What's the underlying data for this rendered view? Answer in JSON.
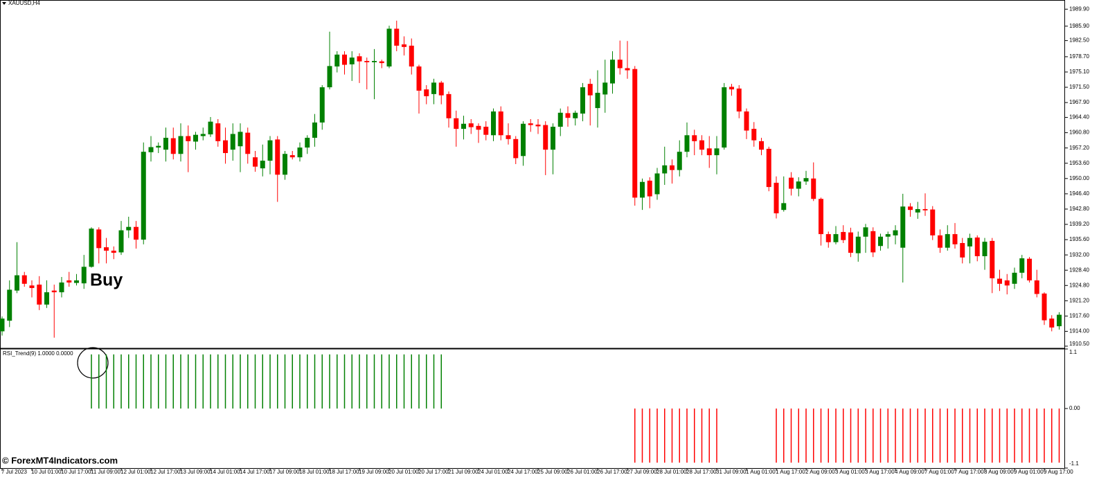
{
  "chart_data": [
    {
      "type": "candlestick",
      "title": "XAUUSD,H4",
      "annotation": "Buy",
      "up_color": "#008000",
      "down_color": "#ff0000",
      "categories": [
        "7 Jul 2023",
        null,
        null,
        null,
        "10 Jul 01:00",
        null,
        null,
        null,
        "10 Jul 17:00",
        null,
        null,
        null,
        "11 Jul 09:00",
        null,
        null,
        null,
        "12 Jul 01:00",
        null,
        null,
        null,
        "12 Jul 17:00",
        null,
        null,
        null,
        "13 Jul 09:00",
        null,
        null,
        null,
        "14 Jul 01:00",
        null,
        null,
        null,
        "14 Jul 17:00",
        null,
        null,
        null,
        "17 Jul 09:00",
        null,
        null,
        null,
        "18 Jul 01:00",
        null,
        null,
        null,
        "18 Jul 17:00",
        null,
        null,
        null,
        "19 Jul 09:00",
        null,
        null,
        null,
        "20 Jul 01:00",
        null,
        null,
        null,
        "20 Jul 17:00",
        null,
        null,
        null,
        "21 Jul 09:00",
        null,
        null,
        null,
        "24 Jul 01:00",
        null,
        null,
        null,
        "24 Jul 17:00",
        null,
        null,
        null,
        "25 Jul 09:00",
        null,
        null,
        null,
        "26 Jul 01:00",
        null,
        null,
        null,
        "26 Jul 17:00",
        null,
        null,
        null,
        "27 Jul 09:00",
        null,
        null,
        null,
        "28 Jul 01:00",
        null,
        null,
        null,
        "28 Jul 17:00",
        null,
        null,
        null,
        "31 Jul 09:00",
        null,
        null,
        null,
        "1 Aug 01:00",
        null,
        null,
        null,
        "1 Aug 17:00",
        null,
        null,
        null,
        "2 Aug 09:00",
        null,
        null,
        null,
        "3 Aug 01:00",
        null,
        null,
        null,
        "3 Aug 17:00",
        null,
        null,
        null,
        "4 Aug 09:00",
        null,
        null,
        null,
        "7 Aug 01:00",
        null,
        null,
        null,
        "7 Aug 17:00",
        null,
        null,
        null,
        "8 Aug 09:00",
        null,
        null,
        null,
        "9 Aug 01:00",
        null,
        null,
        null,
        "9 Aug 17:00",
        null,
        null
      ],
      "open": [
        1914,
        1916.5,
        1923.6,
        1927.2,
        1924.8,
        1925,
        1920.3,
        1923.6,
        1923.2,
        1926,
        1925.4,
        1925.3,
        1929.2,
        1938,
        1933.8,
        1933,
        1932.6,
        1937.8,
        1938.6,
        1935.6,
        1956.2,
        1957.3,
        1956.8,
        1959.5,
        1955.8,
        1960,
        1958.7,
        1960,
        1960.4,
        1963,
        1959,
        1956.8,
        1957.6,
        1960.8,
        1955,
        1952.4,
        1954.2,
        1959.2,
        1950.9,
        1955.5,
        1955,
        1957.3,
        1959.6,
        1963.2,
        1971.5,
        1976.4,
        1979.2,
        1976.9,
        1978.8,
        1977.7,
        1977.4,
        1977.6,
        1976.4,
        1985.3,
        1981.6,
        1981.3,
        1976.4,
        1971,
        1969.9,
        1972.6,
        1969.9,
        1964.2,
        1961.7,
        1963,
        1962.4,
        1962.2,
        1960.2,
        1965.8,
        1960.2,
        1959.3,
        1955.3,
        1963,
        1962.7,
        1962.6,
        1956.8,
        1962.2,
        1965.4,
        1964.2,
        1965.3,
        1972.3,
        1966.6,
        1969.8,
        1972.4,
        1978,
        1976,
        1975.8,
        1945.5,
        1949.5,
        1946.3,
        1951.2,
        1953.1,
        1952,
        1956.3,
        1960.2,
        1959,
        1957.1,
        1955.5,
        1957.3,
        1971.6,
        1971.2,
        1965.8,
        1961.7,
        1958.8,
        1957,
        1949,
        1942.6,
        1950.2,
        1947.6,
        1949.3,
        1950,
        1945.2,
        1936.9,
        1935,
        1937.4,
        1937.3,
        1932.4,
        1936.3,
        1937.6,
        1934.1,
        1936.3,
        1936.6,
        1933.7,
        1943.4,
        1942,
        1942.8,
        1942.7,
        1936.6,
        1933.7,
        1936.9,
        1934.8,
        1934,
        1936.1,
        1931.7,
        1935.3,
        1926.4,
        1926,
        1925.2,
        1927.8,
        1931.1,
        1926,
        1922.9,
        1917,
        1915.2
      ],
      "high": [
        1917.5,
        1926,
        1935,
        1928,
        1926,
        1927,
        1926,
        1925,
        1926.8,
        1928,
        1927.5,
        1932,
        1938.5,
        1938.5,
        1936,
        1934,
        1940,
        1941,
        1940,
        1958.5,
        1960,
        1958.5,
        1962,
        1962,
        1963,
        1962.5,
        1961,
        1962,
        1964.5,
        1964,
        1962,
        1963,
        1963,
        1962,
        1956.5,
        1958,
        1960,
        1960,
        1956.5,
        1956.5,
        1958.5,
        1960.2,
        1965.2,
        1972,
        1984.6,
        1980,
        1980,
        1980,
        1979.5,
        1978.5,
        1980.5,
        1978,
        1986,
        1987.2,
        1983.5,
        1983,
        1976.8,
        1972,
        1973.5,
        1973,
        1970.5,
        1966,
        1964.8,
        1964,
        1963,
        1963.5,
        1966.5,
        1967,
        1963,
        1960,
        1963.5,
        1964,
        1964,
        1963.5,
        1963,
        1966.5,
        1967,
        1966,
        1972.5,
        1973.5,
        1975.5,
        1978,
        1980,
        1982.5,
        1982.4,
        1976.5,
        1950,
        1950.3,
        1952.5,
        1957.5,
        1954.5,
        1959,
        1963.2,
        1961.5,
        1960.2,
        1960,
        1960,
        1972.5,
        1972.3,
        1972,
        1966.5,
        1963.3,
        1959.6,
        1957.5,
        1950.5,
        1950.5,
        1951.5,
        1950.3,
        1951.8,
        1953.8,
        1945.5,
        1937.5,
        1938.8,
        1939,
        1938.4,
        1937.5,
        1939.3,
        1938.5,
        1937,
        1937.5,
        1939,
        1946.4,
        1944.2,
        1944.5,
        1946.5,
        1943.5,
        1938,
        1939,
        1939.5,
        1936,
        1937,
        1936.6,
        1936,
        1936,
        1928.5,
        1927.5,
        1929,
        1932,
        1931.5,
        1928.5,
        1923.2,
        1917.8,
        1918.5
      ],
      "low": [
        1913,
        1915,
        1923,
        1924.5,
        1922,
        1919,
        1919.5,
        1912.5,
        1922,
        1924.5,
        1924.8,
        1924,
        1929,
        1930,
        1930,
        1931,
        1932,
        1936,
        1933.5,
        1934.5,
        1954,
        1956,
        1954,
        1954.5,
        1954,
        1951.5,
        1956.8,
        1959,
        1959.8,
        1957.5,
        1953.5,
        1954.2,
        1951.5,
        1953.5,
        1951.6,
        1950.5,
        1951,
        1944.5,
        1949.7,
        1954.5,
        1954,
        1955.8,
        1957.5,
        1961.5,
        1971,
        1975,
        1974.5,
        1973,
        1972.5,
        1971,
        1968.7,
        1976,
        1976,
        1980,
        1979,
        1974.5,
        1965.3,
        1967.5,
        1967.5,
        1967.5,
        1962,
        1957.5,
        1959.2,
        1960.5,
        1958.4,
        1959,
        1958.8,
        1959,
        1958,
        1953.4,
        1953,
        1961,
        1960.5,
        1950.8,
        1951,
        1960,
        1962.2,
        1962.5,
        1963.5,
        1962.5,
        1962,
        1965.5,
        1970,
        1974.5,
        1973.5,
        1943.6,
        1942.6,
        1943,
        1945,
        1948.5,
        1948.8,
        1950.5,
        1955,
        1955.5,
        1955.5,
        1952.5,
        1951,
        1956.8,
        1969.5,
        1964.2,
        1959.3,
        1957.5,
        1955.5,
        1947,
        1940.6,
        1942.2,
        1946,
        1945.8,
        1948.5,
        1944.7,
        1934.2,
        1933.7,
        1934.5,
        1934.8,
        1931.5,
        1930.4,
        1932.5,
        1931.5,
        1933,
        1933.5,
        1934.5,
        1925.5,
        1941,
        1940.5,
        1941.2,
        1935.5,
        1932.5,
        1933,
        1933.5,
        1930,
        1930,
        1930.5,
        1928.5,
        1923,
        1923.5,
        1922.7,
        1924,
        1926.5,
        1925.5,
        1922,
        1915.5,
        1914,
        1914.4
      ],
      "close": [
        1917,
        1923.8,
        1927.2,
        1925.2,
        1924.2,
        1920.3,
        1923.2,
        1923.2,
        1925.5,
        1925.5,
        1926,
        1929.2,
        1938.2,
        1933.6,
        1933,
        1932.5,
        1937.8,
        1938.6,
        1935.6,
        1956.3,
        1957.4,
        1957.7,
        1959.6,
        1955.8,
        1960,
        1958.8,
        1960.3,
        1960.5,
        1963.4,
        1958.8,
        1956,
        1960.5,
        1961,
        1955.8,
        1952.8,
        1954.2,
        1959,
        1950.9,
        1955.8,
        1955,
        1957.3,
        1959.6,
        1963.2,
        1971.5,
        1976.5,
        1979.2,
        1976.8,
        1978.5,
        1977.6,
        1977.4,
        1977.7,
        1977.2,
        1985.3,
        1981.3,
        1981,
        1976.4,
        1970.7,
        1969.4,
        1972.6,
        1969.6,
        1964.2,
        1961.7,
        1962.9,
        1962.1,
        1961.5,
        1960.3,
        1965.8,
        1960.2,
        1959.3,
        1954.8,
        1962.9,
        1962.6,
        1962.3,
        1956.8,
        1962.2,
        1965.5,
        1964.3,
        1965.5,
        1971.5,
        1969.6,
        1970.2,
        1972.6,
        1978,
        1976,
        1975.5,
        1945.5,
        1949.2,
        1945.8,
        1951.2,
        1953.1,
        1952,
        1956.3,
        1960.2,
        1958.8,
        1956.8,
        1955.5,
        1957.1,
        1971.5,
        1971,
        1965.8,
        1961.3,
        1959,
        1956.8,
        1948,
        1941.8,
        1944.2,
        1947.6,
        1949.3,
        1950.1,
        1945.2,
        1936.9,
        1935,
        1936.9,
        1935.5,
        1932.5,
        1936.3,
        1938.5,
        1932.6,
        1936.3,
        1936.9,
        1937.8,
        1943.4,
        1942.6,
        1942.8,
        1942.5,
        1936.6,
        1933.7,
        1936.9,
        1934.5,
        1931.4,
        1936,
        1931.7,
        1935.1,
        1926.5,
        1925.2,
        1924.8,
        1927.8,
        1931.2,
        1926,
        1922.8,
        1916.6,
        1914.9,
        1917.9
      ],
      "ylim": [
        1910,
        1991.9
      ],
      "yticks": [
        {
          "value": 1989.9,
          "label": "1989.90"
        },
        {
          "value": 1985.9,
          "label": "1985.90"
        },
        {
          "value": 1982.5,
          "label": "1982.50"
        },
        {
          "value": 1978.7,
          "label": "1978.70"
        },
        {
          "value": 1975.1,
          "label": "1975.10"
        },
        {
          "value": 1971.5,
          "label": "1971.50"
        },
        {
          "value": 1967.9,
          "label": "1967.90"
        },
        {
          "value": 1964.4,
          "label": "1964.40"
        },
        {
          "value": 1960.8,
          "label": "1960.80"
        },
        {
          "value": 1957.2,
          "label": "1957.20"
        },
        {
          "value": 1953.6,
          "label": "1953.60"
        },
        {
          "value": 1950,
          "label": "1950.00"
        },
        {
          "value": 1946.4,
          "label": "1946.40"
        },
        {
          "value": 1942.8,
          "label": "1942.80"
        },
        {
          "value": 1939.2,
          "label": "1939.20"
        },
        {
          "value": 1935.6,
          "label": "1935.60"
        },
        {
          "value": 1932,
          "label": "1932.00"
        },
        {
          "value": 1928.4,
          "label": "1928.40"
        },
        {
          "value": 1924.8,
          "label": "1924.80"
        },
        {
          "value": 1921.2,
          "label": "1921.20"
        },
        {
          "value": 1917.6,
          "label": "1917.60"
        },
        {
          "value": 1914,
          "label": "1914.00"
        },
        {
          "value": 1910.5,
          "label": "1910.50"
        }
      ]
    },
    {
      "type": "bar",
      "title": "RSI_Trend(9) 1.0000 0.0000",
      "up_color": "#008000",
      "down_color": "#ff0000",
      "values": [
        null,
        null,
        null,
        null,
        null,
        null,
        null,
        null,
        null,
        null,
        null,
        null,
        1,
        1,
        1,
        1,
        1,
        1,
        1,
        1,
        1,
        1,
        1,
        1,
        1,
        1,
        1,
        1,
        1,
        1,
        1,
        1,
        1,
        1,
        1,
        1,
        1,
        1,
        1,
        1,
        1,
        1,
        1,
        1,
        1,
        1,
        1,
        1,
        1,
        1,
        1,
        1,
        1,
        1,
        1,
        1,
        1,
        1,
        1,
        1,
        null,
        null,
        null,
        null,
        null,
        null,
        null,
        null,
        null,
        null,
        null,
        null,
        null,
        null,
        null,
        null,
        null,
        null,
        null,
        null,
        null,
        null,
        null,
        null,
        null,
        -1,
        -1,
        -1,
        -1,
        -1,
        -1,
        -1,
        -1,
        -1,
        -1,
        -1,
        -1,
        null,
        null,
        null,
        null,
        null,
        null,
        null,
        -1,
        -1,
        -1,
        -1,
        -1,
        -1,
        -1,
        -1,
        -1,
        -1,
        -1,
        -1,
        -1,
        -1,
        -1,
        -1,
        -1,
        -1,
        -1,
        -1,
        -1,
        -1,
        -1,
        -1,
        -1,
        -1,
        -1,
        -1,
        -1,
        -1,
        -1,
        -1,
        -1,
        -1,
        -1,
        -1,
        -1,
        -1,
        -1
      ],
      "ylim": [
        -1.1,
        1.1
      ],
      "yticks": [
        1.1,
        {
          "value": 0,
          "label": "0.00"
        },
        -1.1
      ]
    }
  ],
  "watermark": "© ForexMT4Indicators.com"
}
